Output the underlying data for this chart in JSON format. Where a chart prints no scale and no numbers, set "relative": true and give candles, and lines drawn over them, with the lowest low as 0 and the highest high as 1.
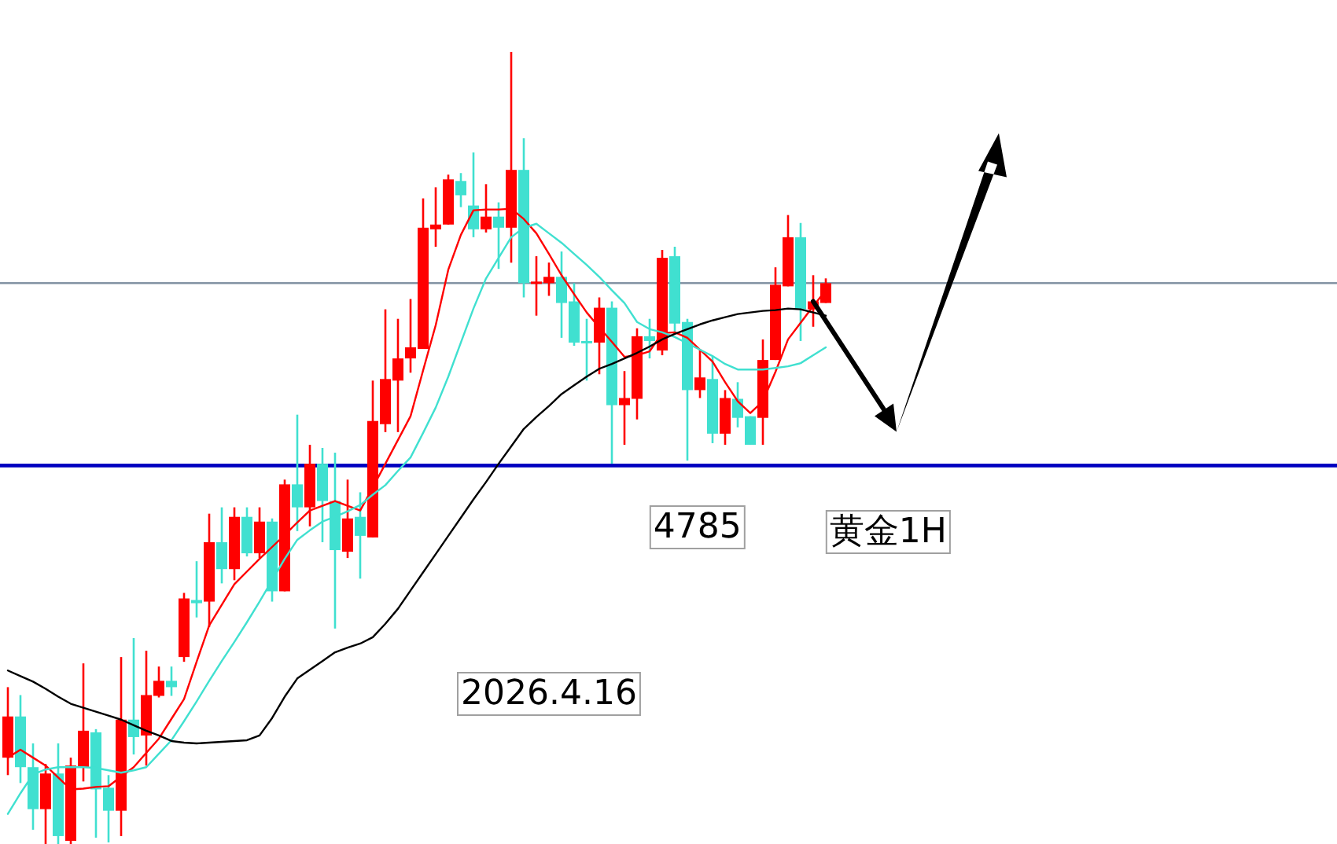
{
  "chart_data": {
    "type": "candlestick",
    "relative": true,
    "categories": [
      null,
      null,
      null,
      null,
      null,
      null,
      null,
      null,
      null,
      null,
      null,
      null,
      null,
      null,
      null,
      null,
      null,
      null,
      null,
      null,
      null,
      null,
      null,
      null,
      null,
      null,
      null,
      null,
      null,
      null,
      null,
      null,
      null,
      null,
      null,
      null,
      null,
      null,
      null,
      null,
      null,
      null,
      null,
      null,
      null,
      null,
      null,
      null,
      null,
      null,
      null,
      null,
      null,
      null,
      null,
      null,
      null,
      null,
      null,
      null,
      null,
      null,
      null,
      null,
      null,
      null
    ],
    "ohlc": [
      [
        0.109,
        0.198,
        0.087,
        0.161
      ],
      [
        0.161,
        0.188,
        0.077,
        0.097
      ],
      [
        0.097,
        0.127,
        0.018,
        0.044
      ],
      [
        0.044,
        0.101,
        0,
        0.089
      ],
      [
        0.089,
        0.127,
        0,
        0.01
      ],
      [
        0.004,
        0.109,
        0,
        0.099
      ],
      [
        0.097,
        0.228,
        0.079,
        0.143
      ],
      [
        0.141,
        0.145,
        0.008,
        0.069
      ],
      [
        0.071,
        0.087,
        0.002,
        0.042
      ],
      [
        0.042,
        0.236,
        0.01,
        0.157
      ],
      [
        0.157,
        0.26,
        0.113,
        0.135
      ],
      [
        0.137,
        0.244,
        0.099,
        0.188
      ],
      [
        0.187,
        0.224,
        0.185,
        0.206
      ],
      [
        0.206,
        0.224,
        0.187,
        0.198
      ],
      [
        0.236,
        0.317,
        0.23,
        0.31
      ],
      [
        0.308,
        0.357,
        0.286,
        0.304
      ],
      [
        0.306,
        0.417,
        0.274,
        0.381
      ],
      [
        0.381,
        0.425,
        0.329,
        0.347
      ],
      [
        0.347,
        0.425,
        0.333,
        0.413
      ],
      [
        0.413,
        0.425,
        0.363,
        0.367
      ],
      [
        0.367,
        0.425,
        0.361,
        0.407
      ],
      [
        0.407,
        0.411,
        0.306,
        0.319
      ],
      [
        0.319,
        0.46,
        0.319,
        0.454
      ],
      [
        0.454,
        0.542,
        0.395,
        0.425
      ],
      [
        0.425,
        0.504,
        0.401,
        0.48
      ],
      [
        0.48,
        0.5,
        0.381,
        0.433
      ],
      [
        0.433,
        0.494,
        0.272,
        0.371
      ],
      [
        0.369,
        0.46,
        0.361,
        0.411
      ],
      [
        0.413,
        0.444,
        0.335,
        0.389
      ],
      [
        0.387,
        0.585,
        0.387,
        0.534
      ],
      [
        0.53,
        0.675,
        0.52,
        0.587
      ],
      [
        0.585,
        0.663,
        0.52,
        0.613
      ],
      [
        0.613,
        0.688,
        0.595,
        0.627
      ],
      [
        0.625,
        0.815,
        0.625,
        0.778
      ],
      [
        0.776,
        0.829,
        0.754,
        0.782
      ],
      [
        0.782,
        0.845,
        0.782,
        0.839
      ],
      [
        0.837,
        0.847,
        0.804,
        0.819
      ],
      [
        0.806,
        0.873,
        0.766,
        0.776
      ],
      [
        0.776,
        0.833,
        0.772,
        0.792
      ],
      [
        0.792,
        0.81,
        0.726,
        0.778
      ],
      [
        0.778,
        1,
        0.734,
        0.851
      ],
      [
        0.851,
        0.891,
        0.69,
        0.708
      ],
      [
        0.708,
        0.742,
        0.667,
        0.71
      ],
      [
        0.708,
        0.734,
        0.692,
        0.716
      ],
      [
        0.716,
        0.748,
        0.639,
        0.683
      ],
      [
        0.685,
        0.708,
        0.629,
        0.633
      ],
      [
        0.635,
        0.663,
        0.585,
        0.633
      ],
      [
        0.633,
        0.69,
        0.593,
        0.677
      ],
      [
        0.677,
        0.685,
        0.48,
        0.554
      ],
      [
        0.554,
        0.597,
        0.504,
        0.563
      ],
      [
        0.562,
        0.651,
        0.536,
        0.641
      ],
      [
        0.641,
        0.663,
        0.613,
        0.635
      ],
      [
        0.623,
        0.75,
        0.617,
        0.74
      ],
      [
        0.742,
        0.754,
        0.645,
        0.657
      ],
      [
        0.659,
        0.663,
        0.484,
        0.573
      ],
      [
        0.573,
        0.625,
        0.563,
        0.589
      ],
      [
        0.587,
        0.615,
        0.506,
        0.518
      ],
      [
        0.518,
        0.573,
        0.504,
        0.563
      ],
      [
        0.562,
        0.583,
        0.526,
        0.538
      ],
      [
        0.54,
        0.54,
        0.504,
        0.504
      ],
      [
        0.538,
        0.637,
        0.504,
        0.611
      ],
      [
        0.611,
        0.728,
        0.611,
        0.706
      ],
      [
        0.704,
        0.794,
        0.704,
        0.766
      ],
      [
        0.766,
        0.784,
        0.635,
        0.675
      ],
      [
        0.675,
        0.718,
        0.653,
        0.685
      ],
      [
        0.683,
        0.714,
        0.683,
        0.708
      ]
    ],
    "colors": [
      "#ff0000",
      "#40e0d0",
      "#40e0d0",
      "#ff0000",
      "#40e0d0",
      "#ff0000",
      "#ff0000",
      "#40e0d0",
      "#40e0d0",
      "#ff0000",
      "#40e0d0",
      "#ff0000",
      "#ff0000",
      "#40e0d0",
      "#ff0000",
      "#40e0d0",
      "#ff0000",
      "#40e0d0",
      "#ff0000",
      "#40e0d0",
      "#ff0000",
      "#40e0d0",
      "#ff0000",
      "#40e0d0",
      "#ff0000",
      "#40e0d0",
      "#40e0d0",
      "#ff0000",
      "#40e0d0",
      "#ff0000",
      "#ff0000",
      "#ff0000",
      "#ff0000",
      "#ff0000",
      "#ff0000",
      "#ff0000",
      "#40e0d0",
      "#40e0d0",
      "#ff0000",
      "#40e0d0",
      "#ff0000",
      "#40e0d0",
      "#ff0000",
      "#ff0000",
      "#40e0d0",
      "#40e0d0",
      "#40e0d0",
      "#ff0000",
      "#40e0d0",
      "#ff0000",
      "#ff0000",
      "#40e0d0",
      "#ff0000",
      "#40e0d0",
      "#40e0d0",
      "#ff0000",
      "#40e0d0",
      "#ff0000",
      "#40e0d0",
      "#40e0d0",
      "#ff0000",
      "#ff0000",
      "#ff0000",
      "#40e0d0",
      "#ff0000",
      "#ff0000"
    ],
    "series": [
      {
        "type": "line",
        "color": "#ff0000",
        "values": [
          0.109,
          0.119,
          0.109,
          0.099,
          0.084,
          0.069,
          0.07,
          0.072,
          0.073,
          0.085,
          0.097,
          0.115,
          0.133,
          0.158,
          0.183,
          0.23,
          0.276,
          0.302,
          0.328,
          0.344,
          0.36,
          0.375,
          0.39,
          0.406,
          0.421,
          0.427,
          0.433,
          0.427,
          0.421,
          0.45,
          0.48,
          0.51,
          0.54,
          0.598,
          0.655,
          0.725,
          0.769,
          0.8,
          0.801,
          0.801,
          0.802,
          0.789,
          0.771,
          0.745,
          0.718,
          0.694,
          0.671,
          0.652,
          0.634,
          0.615,
          0.617,
          0.622,
          0.645,
          0.646,
          0.639,
          0.624,
          0.609,
          0.583,
          0.559,
          0.544,
          0.559,
          0.596,
          0.637,
          0.658,
          0.679,
          0.699
        ]
      },
      {
        "type": "line",
        "color": "#40e0d0",
        "values": [
          0.038,
          0.064,
          0.088,
          0.094,
          0.097,
          0.097,
          0.097,
          0.096,
          0.093,
          0.09,
          0.093,
          0.097,
          0.114,
          0.131,
          0.155,
          0.18,
          0.206,
          0.231,
          0.255,
          0.28,
          0.306,
          0.333,
          0.36,
          0.384,
          0.396,
          0.407,
          0.413,
          0.42,
          0.428,
          0.441,
          0.453,
          0.471,
          0.488,
          0.519,
          0.551,
          0.59,
          0.633,
          0.676,
          0.714,
          0.74,
          0.766,
          0.778,
          0.783,
          0.771,
          0.759,
          0.745,
          0.731,
          0.716,
          0.699,
          0.683,
          0.659,
          0.65,
          0.646,
          0.64,
          0.632,
          0.624,
          0.616,
          0.606,
          0.599,
          0.599,
          0.599,
          0.601,
          0.603,
          0.607,
          0.617,
          0.627
        ]
      },
      {
        "type": "line",
        "color": "#000000",
        "values": [
          0.219,
          0.212,
          0.205,
          0.196,
          0.186,
          0.177,
          0.172,
          0.167,
          0.162,
          0.157,
          0.15,
          0.143,
          0.137,
          0.13,
          0.128,
          0.127,
          0.128,
          0.129,
          0.13,
          0.131,
          0.137,
          0.159,
          0.186,
          0.209,
          0.22,
          0.231,
          0.242,
          0.248,
          0.253,
          0.261,
          0.278,
          0.297,
          0.32,
          0.343,
          0.366,
          0.389,
          0.412,
          0.435,
          0.457,
          0.48,
          0.502,
          0.524,
          0.539,
          0.553,
          0.568,
          0.579,
          0.59,
          0.6,
          0.606,
          0.613,
          0.62,
          0.628,
          0.637,
          0.644,
          0.65,
          0.656,
          0.661,
          0.665,
          0.669,
          0.671,
          0.673,
          0.674,
          0.676,
          0.675,
          0.671,
          0.667
        ]
      }
    ],
    "ref_lines": [
      {
        "axis": "y",
        "value": 0.708,
        "color": "#7f8fa0"
      },
      {
        "axis": "y",
        "value": 0.478,
        "color": "#0000c0"
      }
    ],
    "annotations": [
      "4785",
      "黄金1H",
      "2026.4.16"
    ]
  }
}
